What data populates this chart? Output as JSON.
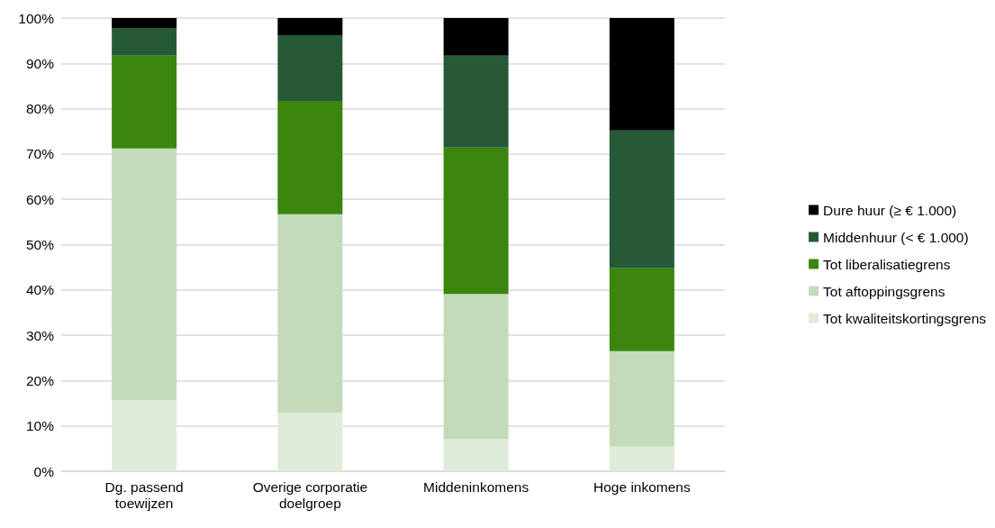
{
  "chart_data": {
    "type": "bar",
    "stacked": true,
    "categories": [
      "Dg. passend\ntoewijzen",
      "Overige corporatie\ndoelgroep",
      "Middeninkomens",
      "Hoge inkomens"
    ],
    "series": [
      {
        "name": "Tot kwaliteitskortingsgrens",
        "color": "#e0ecda",
        "values": [
          15.7,
          12.9,
          7.1,
          5.4
        ]
      },
      {
        "name": "Tot aftoppingsgrens",
        "color": "#c4dbb9",
        "values": [
          55.5,
          43.8,
          32.0,
          21.1
        ]
      },
      {
        "name": "Tot liberalisatiegrens",
        "color": "#3a860e",
        "values": [
          20.5,
          25.0,
          32.3,
          18.3
        ]
      },
      {
        "name": "Middenhuur (< € 1.000)",
        "color": "#265a37",
        "values": [
          6.1,
          14.5,
          20.3,
          30.4
        ]
      },
      {
        "name": "Dure huur (≥ € 1.000)",
        "color": "#000000",
        "values": [
          2.2,
          3.8,
          8.3,
          24.8
        ]
      }
    ],
    "ylim": [
      0,
      100
    ],
    "yticks": [
      {
        "value": 0,
        "label": "0%"
      },
      {
        "value": 10,
        "label": "10%"
      },
      {
        "value": 20,
        "label": "20%"
      },
      {
        "value": 30,
        "label": "30%"
      },
      {
        "value": 40,
        "label": "40%"
      },
      {
        "value": 50,
        "label": "50%"
      },
      {
        "value": 60,
        "label": "60%"
      },
      {
        "value": 70,
        "label": "70%"
      },
      {
        "value": 80,
        "label": "80%"
      },
      {
        "value": 90,
        "label": "90%"
      },
      {
        "value": 100,
        "label": "100%"
      }
    ],
    "grid": "y",
    "legend": "right"
  }
}
